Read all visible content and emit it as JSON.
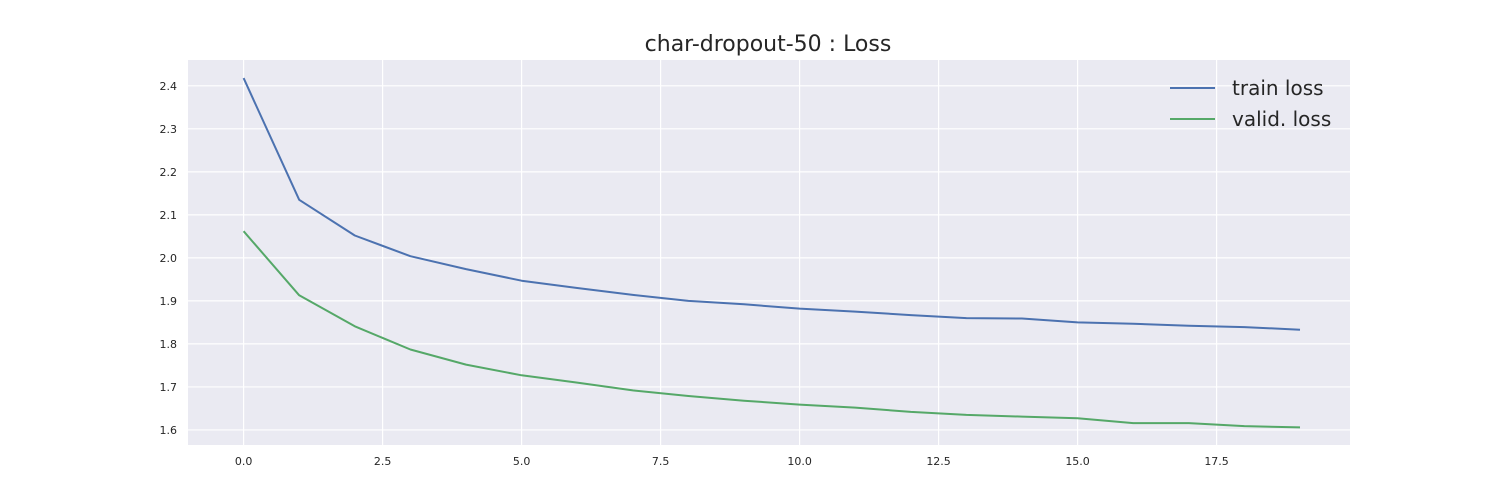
{
  "chart_data": {
    "type": "line",
    "title": "char-dropout-50 : Loss",
    "xlabel": "",
    "ylabel": "",
    "xlim": [
      -1,
      19.9
    ],
    "ylim": [
      1.565,
      2.46
    ],
    "xticks": [
      0.0,
      2.5,
      5.0,
      7.5,
      10.0,
      12.5,
      15.0,
      17.5
    ],
    "xtick_labels": [
      "0.0",
      "2.5",
      "5.0",
      "7.5",
      "10.0",
      "12.5",
      "15.0",
      "17.5"
    ],
    "yticks": [
      1.6,
      1.7,
      1.8,
      1.9,
      2.0,
      2.1,
      2.2,
      2.3,
      2.4
    ],
    "ytick_labels": [
      "1.6",
      "1.7",
      "1.8",
      "1.9",
      "2.0",
      "2.1",
      "2.2",
      "2.3",
      "2.4"
    ],
    "grid": true,
    "legend_position": "top-right",
    "background_color": "#eaeaf2",
    "x": [
      0,
      1,
      2,
      3,
      4,
      5,
      6,
      7,
      8,
      9,
      10,
      11,
      12,
      13,
      14,
      15,
      16,
      17,
      18,
      19
    ],
    "series": [
      {
        "name": "train loss",
        "color": "#4c72b0",
        "values": [
          2.418,
          2.135,
          2.052,
          2.004,
          1.974,
          1.947,
          1.93,
          1.914,
          1.9,
          1.892,
          1.882,
          1.875,
          1.867,
          1.86,
          1.859,
          1.85,
          1.847,
          1.842,
          1.839,
          1.833
        ]
      },
      {
        "name": "valid. loss",
        "color": "#55a868",
        "values": [
          2.062,
          1.913,
          1.841,
          1.787,
          1.752,
          1.727,
          1.71,
          1.692,
          1.679,
          1.668,
          1.659,
          1.652,
          1.642,
          1.635,
          1.631,
          1.627,
          1.616,
          1.616,
          1.609,
          1.606
        ]
      }
    ]
  }
}
